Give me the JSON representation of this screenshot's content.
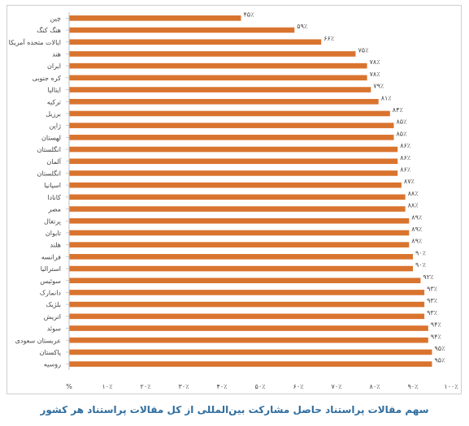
{
  "chart_data": {
    "type": "bar",
    "orientation": "horizontal",
    "title": "",
    "caption": "سهم مقالات پراستناد حاصل مشارکت بین‌المللی از کل مقالات پراستناد هر کشور",
    "xlabel": "",
    "ylabel": "",
    "xlim": [
      0,
      100
    ],
    "grid": false,
    "bar_color": "#d9742f",
    "categories": [
      "چین",
      "هنگ کنگ",
      "ایالات متحده آمریکا",
      "هند",
      "ایران",
      "کره جنوبی",
      "ایتالیا",
      "ترکیه",
      "برزیل",
      "ژاپن",
      "لهستان",
      "انگلستان",
      "آلمان",
      "انگلستان",
      "اسپانیا",
      "کانادا",
      "مصر",
      "پرتغال",
      "تایوان",
      "هلند",
      "فرانسه",
      "استرالیا",
      "سوئیس",
      "دانمارک",
      "بلژیک",
      "اتریش",
      "سوئد",
      "عربستان سعودی",
      "پاکستان",
      "روسیه"
    ],
    "values": [
      45,
      59,
      66,
      75,
      78,
      78,
      79,
      81,
      84,
      85,
      85,
      86,
      86,
      86,
      87,
      88,
      88,
      89,
      89,
      89,
      90,
      90,
      92,
      93,
      93,
      93,
      94,
      94,
      95,
      95
    ],
    "value_labels": [
      "۴۵٪",
      "۵۹٪",
      "۶۶٪",
      "۷۵٪",
      "۷۸٪",
      "۷۸٪",
      "۷۹٪",
      "۸۱٪",
      "۸۴٪",
      "۸۵٪",
      "۸۵٪",
      "۸۶٪",
      "۸۶٪",
      "۸۶٪",
      "۸۷٪",
      "۸۸٪",
      "۸۸٪",
      "۸۹٪",
      "۸۹٪",
      "۸۹٪",
      "۹۰٪",
      "۹۰٪",
      "۹۲٪",
      "۹۳٪",
      "۹۳٪",
      "۹۳٪",
      "۹۴٪",
      "۹۴٪",
      "۹۵٪",
      "۹۵٪"
    ],
    "x_tick_labels": [
      "%",
      "۱۰٪",
      "۲۰٪",
      "۳۰٪",
      "۴۰٪",
      "۵۰٪",
      "۶۰٪",
      "۷۰٪",
      "۸۰٪",
      "۹۰٪",
      "۱۰۰٪"
    ]
  }
}
